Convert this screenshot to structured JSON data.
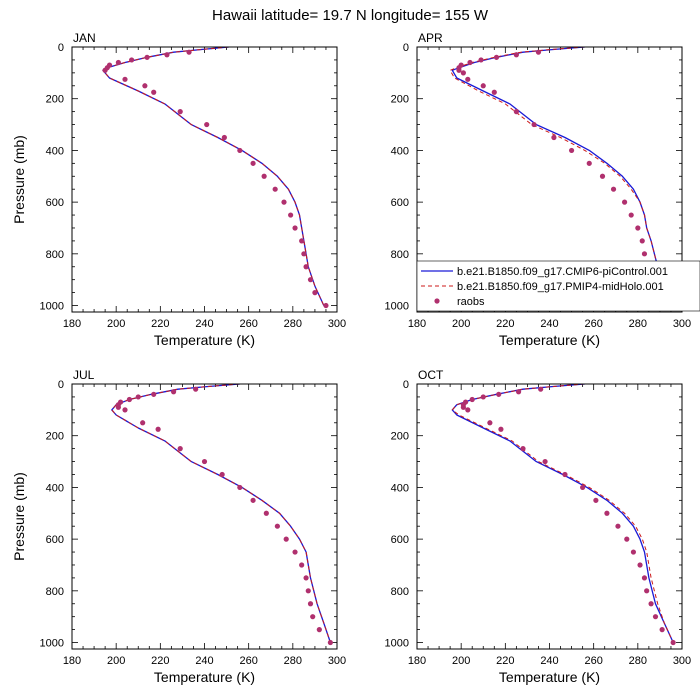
{
  "title": "Hawaii  latitude= 19.7 N longitude= 155 W",
  "colors": {
    "model_line": "#1a1ad6",
    "paleo_line": "#cc1a1a",
    "obs_marker": "#b0306e"
  },
  "legend": {
    "placement": "bottom-right of APR panel",
    "entries": [
      "b.e21.B1850.f09_g17.CMIP6-piControl.001",
      "b.e21.B1850.f09_g17.PMIP4-midHolo.001",
      "raobs"
    ]
  },
  "chart_data": [
    {
      "type": "line",
      "panel": "JAN",
      "xlabel": "Temperature (K)",
      "ylabel": "Pressure (mb)",
      "xlim": [
        180,
        300
      ],
      "ylim": [
        1025,
        0
      ],
      "xticks": [
        180,
        200,
        220,
        240,
        260,
        280,
        300
      ],
      "yticks": [
        0,
        200,
        400,
        600,
        800,
        1000
      ],
      "series": [
        {
          "name": "b.e21.B1850.f09_g17.CMIP6-piControl.001",
          "style": "solid",
          "x": [
            251,
            238,
            226,
            214,
            204,
            196,
            194,
            197,
            210,
            222,
            234,
            246,
            257,
            266,
            273,
            278,
            281,
            283,
            284,
            285,
            287,
            290,
            294
          ],
          "y": [
            0,
            10,
            20,
            40,
            60,
            80,
            90,
            120,
            170,
            220,
            300,
            350,
            400,
            450,
            500,
            550,
            600,
            650,
            700,
            750,
            850,
            925,
            1000
          ]
        },
        {
          "name": "b.e21.B1850.f09_g17.PMIP4-midHolo.001",
          "style": "dashed",
          "x": [
            251,
            238,
            226,
            214,
            204,
            196,
            194,
            197,
            210,
            222,
            234,
            246,
            257,
            266,
            273,
            278,
            281,
            283,
            284,
            285,
            287,
            290,
            294
          ],
          "y": [
            0,
            10,
            20,
            40,
            60,
            80,
            90,
            120,
            170,
            220,
            300,
            350,
            400,
            450,
            500,
            550,
            600,
            650,
            700,
            750,
            850,
            925,
            1000
          ]
        },
        {
          "name": "raobs",
          "style": "markers",
          "x": [
            233,
            223,
            214,
            207,
            201,
            197,
            196,
            195,
            204,
            213,
            217,
            229,
            241,
            249,
            256,
            262,
            267,
            272,
            276,
            279,
            281,
            284,
            285,
            286,
            288,
            290,
            295
          ],
          "y": [
            20,
            30,
            40,
            50,
            60,
            70,
            80,
            90,
            125,
            150,
            175,
            250,
            300,
            350,
            400,
            450,
            500,
            550,
            600,
            650,
            700,
            750,
            800,
            850,
            900,
            950,
            1000
          ]
        }
      ]
    },
    {
      "type": "line",
      "panel": "APR",
      "xlabel": "Temperature (K)",
      "ylabel": "",
      "xlim": [
        180,
        300
      ],
      "ylim": [
        1025,
        0
      ],
      "xticks": [
        180,
        200,
        220,
        240,
        260,
        280,
        300
      ],
      "yticks": [
        0,
        200,
        400,
        600,
        800,
        1000
      ],
      "series": [
        {
          "name": "b.e21.B1850.f09_g17.CMIP6-piControl.001",
          "style": "solid",
          "x": [
            256,
            241,
            228,
            216,
            206,
            199,
            196,
            198,
            210,
            222,
            234,
            247,
            258,
            266,
            273,
            278,
            281,
            283,
            284,
            286,
            289,
            292,
            295
          ],
          "y": [
            0,
            10,
            20,
            40,
            60,
            80,
            90,
            120,
            170,
            220,
            300,
            350,
            400,
            450,
            500,
            550,
            600,
            650,
            700,
            750,
            850,
            925,
            1000
          ]
        },
        {
          "name": "b.e21.B1850.f09_g17.PMIP4-midHolo.001",
          "style": "dashed",
          "x": [
            256,
            240,
            227,
            215,
            205,
            198,
            195,
            197,
            208,
            220,
            232,
            245,
            256,
            265,
            272,
            277,
            281,
            283,
            284,
            286,
            289,
            292,
            295
          ],
          "y": [
            0,
            10,
            20,
            40,
            60,
            80,
            90,
            120,
            170,
            220,
            300,
            350,
            400,
            450,
            500,
            550,
            600,
            650,
            700,
            750,
            850,
            925,
            1000
          ]
        },
        {
          "name": "raobs",
          "style": "markers",
          "x": [
            235,
            225,
            216,
            209,
            204,
            200,
            199,
            199,
            201,
            203,
            210,
            215,
            225,
            233,
            242,
            250,
            258,
            264,
            269,
            274,
            277,
            280,
            282,
            283,
            285,
            290,
            295
          ],
          "y": [
            20,
            30,
            40,
            50,
            60,
            70,
            80,
            90,
            100,
            125,
            150,
            175,
            250,
            300,
            350,
            400,
            450,
            500,
            550,
            600,
            650,
            700,
            750,
            800,
            850,
            950,
            1000
          ]
        }
      ]
    },
    {
      "type": "line",
      "panel": "JUL",
      "xlabel": "Temperature (K)",
      "ylabel": "Pressure (mb)",
      "xlim": [
        180,
        300
      ],
      "ylim": [
        1025,
        0
      ],
      "xticks": [
        180,
        200,
        220,
        240,
        260,
        280,
        300
      ],
      "yticks": [
        0,
        200,
        400,
        600,
        800,
        1000
      ],
      "series": [
        {
          "name": "b.e21.B1850.f09_g17.CMIP6-piControl.001",
          "style": "solid",
          "x": [
            256,
            241,
            228,
            216,
            206,
            200,
            198,
            200,
            210,
            222,
            234,
            246,
            257,
            266,
            274,
            279,
            283,
            286,
            287,
            288,
            291,
            294,
            297
          ],
          "y": [
            0,
            10,
            20,
            40,
            60,
            80,
            100,
            120,
            170,
            220,
            300,
            350,
            400,
            450,
            500,
            550,
            600,
            650,
            700,
            750,
            850,
            925,
            1000
          ]
        },
        {
          "name": "b.e21.B1850.f09_g17.PMIP4-midHolo.001",
          "style": "dashed",
          "x": [
            256,
            241,
            228,
            216,
            206,
            200,
            198,
            200,
            210,
            222,
            234,
            246,
            257,
            266,
            274,
            279,
            283,
            286,
            287,
            288,
            291,
            294,
            297
          ],
          "y": [
            0,
            10,
            20,
            40,
            60,
            80,
            100,
            120,
            170,
            220,
            300,
            350,
            400,
            450,
            500,
            550,
            600,
            650,
            700,
            750,
            850,
            925,
            1000
          ]
        },
        {
          "name": "raobs",
          "style": "markers",
          "x": [
            236,
            226,
            217,
            210,
            206,
            202,
            201,
            201,
            204,
            212,
            219,
            229,
            240,
            248,
            256,
            262,
            268,
            273,
            277,
            281,
            284,
            286,
            287,
            288,
            289,
            292,
            297
          ],
          "y": [
            20,
            30,
            40,
            50,
            60,
            70,
            80,
            90,
            100,
            150,
            175,
            250,
            300,
            350,
            400,
            450,
            500,
            550,
            600,
            650,
            700,
            750,
            800,
            850,
            900,
            950,
            1000
          ]
        }
      ]
    },
    {
      "type": "line",
      "panel": "OCT",
      "xlabel": "Temperature (K)",
      "ylabel": "",
      "xlim": [
        180,
        300
      ],
      "ylim": [
        1025,
        0
      ],
      "xticks": [
        180,
        200,
        220,
        240,
        260,
        280,
        300
      ],
      "yticks": [
        0,
        200,
        400,
        600,
        800,
        1000
      ],
      "series": [
        {
          "name": "b.e21.B1850.f09_g17.CMIP6-piControl.001",
          "style": "solid",
          "x": [
            256,
            241,
            228,
            216,
            205,
            198,
            196,
            198,
            210,
            222,
            234,
            246,
            257,
            266,
            273,
            278,
            281,
            283,
            284,
            285,
            288,
            292,
            296
          ],
          "y": [
            0,
            10,
            20,
            40,
            60,
            80,
            100,
            120,
            170,
            220,
            300,
            350,
            400,
            450,
            500,
            550,
            600,
            650,
            700,
            750,
            850,
            925,
            1000
          ]
        },
        {
          "name": "b.e21.B1850.f09_g17.PMIP4-midHolo.001",
          "style": "dashed",
          "x": [
            256,
            241,
            228,
            216,
            205,
            198,
            196,
            199,
            211,
            223,
            235,
            247,
            258,
            267,
            274,
            279,
            282,
            284,
            285,
            286,
            289,
            292,
            296
          ],
          "y": [
            0,
            10,
            20,
            40,
            60,
            80,
            100,
            120,
            170,
            220,
            300,
            350,
            400,
            450,
            500,
            550,
            600,
            650,
            700,
            750,
            850,
            925,
            1000
          ]
        },
        {
          "name": "raobs",
          "style": "markers",
          "x": [
            236,
            226,
            217,
            210,
            205,
            202,
            201,
            201,
            203,
            213,
            218,
            228,
            238,
            247,
            255,
            261,
            266,
            271,
            275,
            278,
            281,
            283,
            284,
            286,
            288,
            291,
            296
          ],
          "y": [
            20,
            30,
            40,
            50,
            60,
            70,
            80,
            90,
            100,
            150,
            175,
            250,
            300,
            350,
            400,
            450,
            500,
            550,
            600,
            650,
            700,
            750,
            800,
            850,
            900,
            950,
            1000
          ]
        }
      ]
    }
  ]
}
